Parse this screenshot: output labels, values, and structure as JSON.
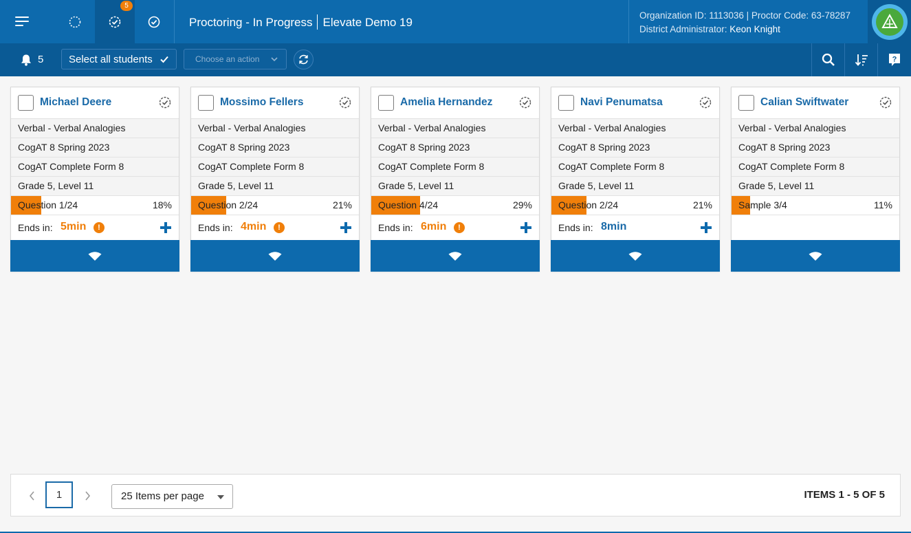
{
  "header": {
    "page_title": "Proctoring - In Progress",
    "session_name": "Elevate Demo 19",
    "in_progress_badge": "5",
    "org_line": "Organization ID: 1113036 | Proctor Code: 63-78287",
    "role_label": "District Administrator:",
    "user_name": "Keon Knight"
  },
  "toolbar": {
    "notification_count": "5",
    "select_all_label": "Select all students",
    "action_placeholder": "Choose an action"
  },
  "students": [
    {
      "name": "Michael Deere",
      "subtest": "Verbal - Verbal Analogies",
      "test": "CogAT 8 Spring 2023",
      "form": "CogAT Complete Form 8",
      "grade_level": "Grade 5, Level 11",
      "progress_label": "Question 1/24",
      "progress_pct_label": "18%",
      "progress_pct": 18,
      "ends_label": "Ends in:",
      "ends_value": "5min",
      "warning": true,
      "show_ends": true
    },
    {
      "name": "Mossimo Fellers",
      "subtest": "Verbal - Verbal Analogies",
      "test": "CogAT 8 Spring 2023",
      "form": "CogAT Complete Form 8",
      "grade_level": "Grade 5, Level 11",
      "progress_label": "Question 2/24",
      "progress_pct_label": "21%",
      "progress_pct": 21,
      "ends_label": "Ends in:",
      "ends_value": "4min",
      "warning": true,
      "show_ends": true
    },
    {
      "name": "Amelia Hernandez",
      "subtest": "Verbal - Verbal Analogies",
      "test": "CogAT 8 Spring 2023",
      "form": "CogAT Complete Form 8",
      "grade_level": "Grade 5, Level 11",
      "progress_label": "Question 4/24",
      "progress_pct_label": "29%",
      "progress_pct": 29,
      "ends_label": "Ends in:",
      "ends_value": "6min",
      "warning": true,
      "show_ends": true
    },
    {
      "name": "Navi Penumatsa",
      "subtest": "Verbal - Verbal Analogies",
      "test": "CogAT 8 Spring 2023",
      "form": "CogAT Complete Form 8",
      "grade_level": "Grade 5, Level 11",
      "progress_label": "Question 2/24",
      "progress_pct_label": "21%",
      "progress_pct": 21,
      "ends_label": "Ends in:",
      "ends_value": "8min",
      "warning": false,
      "show_ends": true
    },
    {
      "name": "Calian Swiftwater",
      "subtest": "Verbal - Verbal Analogies",
      "test": "CogAT 8 Spring 2023",
      "form": "CogAT Complete Form 8",
      "grade_level": "Grade 5, Level 11",
      "progress_label": "Sample 3/4",
      "progress_pct_label": "11%",
      "progress_pct": 11,
      "ends_label": "",
      "ends_value": "",
      "warning": false,
      "show_ends": false
    }
  ],
  "pagination": {
    "current_page": "1",
    "per_page_label": "25 Items per page",
    "items_summary": "ITEMS 1 - 5 OF 5"
  },
  "colors": {
    "primary": "#0d6aad",
    "primary_dark": "#0a5a95",
    "accent_orange": "#f07f0a"
  }
}
